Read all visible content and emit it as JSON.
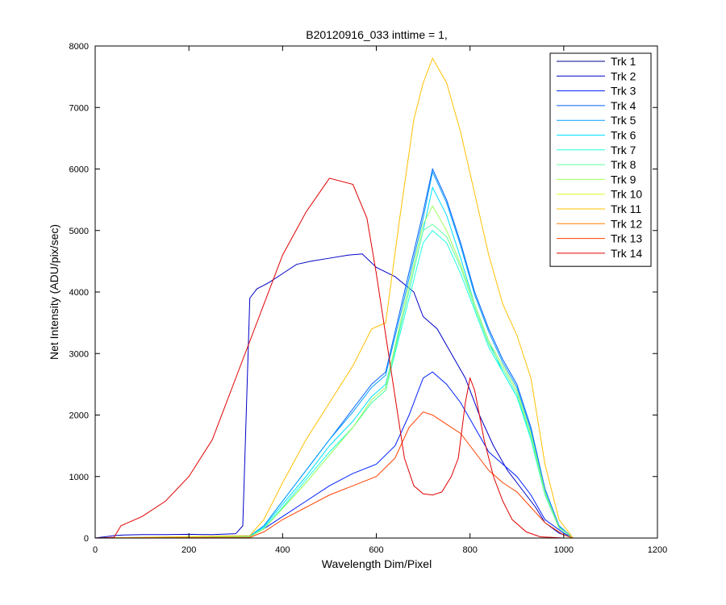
{
  "chart_data": {
    "type": "line",
    "title": "B20120916_033 inttime = 1,",
    "xlabel": "Wavelength Dim/Pixel",
    "ylabel": "Net Intensity (ADU/pix/sec)",
    "xlim": [
      0,
      1200
    ],
    "ylim": [
      0,
      8000
    ],
    "xticks": [
      0,
      200,
      400,
      600,
      800,
      1000,
      1200
    ],
    "yticks": [
      0,
      1000,
      2000,
      3000,
      4000,
      5000,
      6000,
      7000,
      8000
    ],
    "grid": false,
    "legend_position": "top-right",
    "series": [
      {
        "name": "Trk 1",
        "color": "#00008f",
        "points": [
          [
            0,
            0
          ],
          [
            100,
            0
          ],
          [
            200,
            0
          ],
          [
            300,
            0
          ],
          [
            400,
            0
          ],
          [
            500,
            0
          ],
          [
            600,
            0
          ],
          [
            700,
            0
          ],
          [
            800,
            0
          ],
          [
            900,
            0
          ],
          [
            1000,
            0
          ],
          [
            1024,
            0
          ]
        ]
      },
      {
        "name": "Trk 2",
        "color": "#0000c8",
        "points": [
          [
            0,
            0
          ],
          [
            40,
            40
          ],
          [
            60,
            50
          ],
          [
            100,
            55
          ],
          [
            150,
            55
          ],
          [
            200,
            60
          ],
          [
            250,
            55
          ],
          [
            300,
            70
          ],
          [
            315,
            200
          ],
          [
            330,
            3900
          ],
          [
            345,
            4050
          ],
          [
            370,
            4150
          ],
          [
            400,
            4300
          ],
          [
            430,
            4450
          ],
          [
            460,
            4500
          ],
          [
            500,
            4550
          ],
          [
            540,
            4600
          ],
          [
            570,
            4620
          ],
          [
            600,
            4400
          ],
          [
            640,
            4250
          ],
          [
            680,
            4000
          ],
          [
            700,
            3600
          ],
          [
            730,
            3400
          ],
          [
            760,
            3000
          ],
          [
            790,
            2600
          ],
          [
            820,
            2000
          ],
          [
            850,
            1500
          ],
          [
            880,
            1100
          ],
          [
            910,
            800
          ],
          [
            940,
            500
          ],
          [
            960,
            250
          ],
          [
            990,
            80
          ],
          [
            1020,
            0
          ]
        ]
      },
      {
        "name": "Trk 3",
        "color": "#0020ff",
        "points": [
          [
            0,
            0
          ],
          [
            330,
            20
          ],
          [
            360,
            150
          ],
          [
            400,
            350
          ],
          [
            450,
            600
          ],
          [
            500,
            850
          ],
          [
            550,
            1050
          ],
          [
            600,
            1200
          ],
          [
            640,
            1500
          ],
          [
            670,
            2000
          ],
          [
            700,
            2600
          ],
          [
            720,
            2700
          ],
          [
            750,
            2500
          ],
          [
            780,
            2200
          ],
          [
            810,
            1800
          ],
          [
            840,
            1400
          ],
          [
            870,
            1200
          ],
          [
            900,
            1000
          ],
          [
            930,
            700
          ],
          [
            960,
            300
          ],
          [
            1000,
            80
          ],
          [
            1020,
            0
          ]
        ]
      },
      {
        "name": "Trk 4",
        "color": "#0060ff",
        "points": [
          [
            0,
            0
          ],
          [
            330,
            30
          ],
          [
            360,
            200
          ],
          [
            400,
            600
          ],
          [
            450,
            1100
          ],
          [
            500,
            1600
          ],
          [
            550,
            2100
          ],
          [
            590,
            2500
          ],
          [
            620,
            2700
          ],
          [
            660,
            4000
          ],
          [
            700,
            5300
          ],
          [
            720,
            6000
          ],
          [
            750,
            5500
          ],
          [
            780,
            4800
          ],
          [
            810,
            4000
          ],
          [
            840,
            3400
          ],
          [
            870,
            2900
          ],
          [
            900,
            2500
          ],
          [
            930,
            1800
          ],
          [
            960,
            800
          ],
          [
            990,
            200
          ],
          [
            1020,
            0
          ]
        ]
      },
      {
        "name": "Trk 5",
        "color": "#00a0ff",
        "points": [
          [
            0,
            0
          ],
          [
            330,
            30
          ],
          [
            360,
            200
          ],
          [
            400,
            600
          ],
          [
            450,
            1100
          ],
          [
            500,
            1600
          ],
          [
            550,
            2050
          ],
          [
            590,
            2450
          ],
          [
            620,
            2650
          ],
          [
            660,
            3900
          ],
          [
            700,
            5200
          ],
          [
            720,
            5950
          ],
          [
            750,
            5450
          ],
          [
            780,
            4750
          ],
          [
            810,
            3950
          ],
          [
            840,
            3350
          ],
          [
            870,
            2850
          ],
          [
            900,
            2450
          ],
          [
            930,
            1750
          ],
          [
            960,
            780
          ],
          [
            990,
            190
          ],
          [
            1020,
            0
          ]
        ]
      },
      {
        "name": "Trk 6",
        "color": "#00e0ff",
        "points": [
          [
            0,
            0
          ],
          [
            330,
            25
          ],
          [
            360,
            180
          ],
          [
            400,
            550
          ],
          [
            450,
            1000
          ],
          [
            500,
            1500
          ],
          [
            550,
            1900
          ],
          [
            590,
            2300
          ],
          [
            620,
            2500
          ],
          [
            660,
            3700
          ],
          [
            700,
            5000
          ],
          [
            720,
            5700
          ],
          [
            750,
            5250
          ],
          [
            780,
            4550
          ],
          [
            810,
            3800
          ],
          [
            840,
            3200
          ],
          [
            870,
            2700
          ],
          [
            900,
            2300
          ],
          [
            930,
            1650
          ],
          [
            960,
            720
          ],
          [
            990,
            170
          ],
          [
            1020,
            0
          ]
        ]
      },
      {
        "name": "Trk 7",
        "color": "#20ffe0",
        "points": [
          [
            0,
            0
          ],
          [
            330,
            20
          ],
          [
            360,
            160
          ],
          [
            400,
            500
          ],
          [
            450,
            950
          ],
          [
            500,
            1400
          ],
          [
            550,
            1800
          ],
          [
            590,
            2200
          ],
          [
            620,
            2400
          ],
          [
            660,
            3600
          ],
          [
            700,
            4800
          ],
          [
            720,
            5000
          ],
          [
            750,
            4800
          ],
          [
            780,
            4300
          ],
          [
            810,
            3700
          ],
          [
            840,
            3100
          ],
          [
            870,
            2700
          ],
          [
            900,
            2300
          ],
          [
            930,
            1600
          ],
          [
            960,
            700
          ],
          [
            990,
            160
          ],
          [
            1020,
            0
          ]
        ]
      },
      {
        "name": "Trk 8",
        "color": "#60ff9f",
        "points": [
          [
            0,
            0
          ],
          [
            330,
            20
          ],
          [
            360,
            150
          ],
          [
            400,
            480
          ],
          [
            450,
            900
          ],
          [
            500,
            1350
          ],
          [
            550,
            1800
          ],
          [
            590,
            2200
          ],
          [
            620,
            2400
          ],
          [
            660,
            3700
          ],
          [
            700,
            5000
          ],
          [
            720,
            5100
          ],
          [
            750,
            4900
          ],
          [
            780,
            4400
          ],
          [
            810,
            3750
          ],
          [
            840,
            3150
          ],
          [
            870,
            2750
          ],
          [
            900,
            2350
          ],
          [
            930,
            1650
          ],
          [
            960,
            720
          ],
          [
            990,
            170
          ],
          [
            1020,
            0
          ]
        ]
      },
      {
        "name": "Trk 9",
        "color": "#a0ff60",
        "points": [
          [
            0,
            0
          ],
          [
            330,
            20
          ],
          [
            360,
            150
          ],
          [
            400,
            480
          ],
          [
            450,
            900
          ],
          [
            500,
            1350
          ],
          [
            550,
            1800
          ],
          [
            590,
            2250
          ],
          [
            620,
            2450
          ],
          [
            660,
            3800
          ],
          [
            700,
            5100
          ],
          [
            720,
            5400
          ],
          [
            750,
            5000
          ],
          [
            780,
            4450
          ],
          [
            810,
            3800
          ],
          [
            840,
            3200
          ],
          [
            870,
            2800
          ],
          [
            900,
            2400
          ],
          [
            930,
            1700
          ],
          [
            960,
            740
          ],
          [
            990,
            170
          ],
          [
            1020,
            0
          ]
        ]
      },
      {
        "name": "Trk 10",
        "color": "#e0ff20",
        "points": [
          [
            0,
            0
          ],
          [
            100,
            0
          ],
          [
            200,
            0
          ],
          [
            300,
            0
          ],
          [
            400,
            0
          ],
          [
            500,
            0
          ],
          [
            600,
            0
          ],
          [
            700,
            0
          ],
          [
            800,
            0
          ],
          [
            900,
            0
          ],
          [
            1000,
            0
          ],
          [
            1024,
            0
          ]
        ]
      },
      {
        "name": "Trk 11",
        "color": "#ffc000",
        "points": [
          [
            0,
            0
          ],
          [
            330,
            40
          ],
          [
            360,
            300
          ],
          [
            400,
            900
          ],
          [
            450,
            1600
          ],
          [
            500,
            2200
          ],
          [
            550,
            2800
          ],
          [
            590,
            3400
          ],
          [
            620,
            3500
          ],
          [
            650,
            5200
          ],
          [
            680,
            6800
          ],
          [
            700,
            7400
          ],
          [
            720,
            7800
          ],
          [
            750,
            7400
          ],
          [
            780,
            6600
          ],
          [
            810,
            5600
          ],
          [
            840,
            4600
          ],
          [
            870,
            3800
          ],
          [
            900,
            3300
          ],
          [
            930,
            2600
          ],
          [
            960,
            1200
          ],
          [
            990,
            300
          ],
          [
            1020,
            0
          ]
        ]
      },
      {
        "name": "Trk 12",
        "color": "#ff8000",
        "points": [
          [
            0,
            0
          ],
          [
            100,
            0
          ],
          [
            200,
            0
          ],
          [
            300,
            0
          ],
          [
            400,
            0
          ],
          [
            500,
            0
          ],
          [
            600,
            0
          ],
          [
            700,
            0
          ],
          [
            800,
            0
          ],
          [
            900,
            0
          ],
          [
            1000,
            0
          ],
          [
            1024,
            0
          ]
        ]
      },
      {
        "name": "Trk 13",
        "color": "#ff4000",
        "points": [
          [
            0,
            0
          ],
          [
            330,
            10
          ],
          [
            360,
            100
          ],
          [
            400,
            300
          ],
          [
            450,
            500
          ],
          [
            500,
            700
          ],
          [
            550,
            850
          ],
          [
            600,
            1000
          ],
          [
            640,
            1300
          ],
          [
            670,
            1800
          ],
          [
            700,
            2050
          ],
          [
            720,
            2000
          ],
          [
            750,
            1850
          ],
          [
            780,
            1700
          ],
          [
            810,
            1400
          ],
          [
            840,
            1100
          ],
          [
            870,
            900
          ],
          [
            900,
            750
          ],
          [
            930,
            500
          ],
          [
            960,
            250
          ],
          [
            1000,
            50
          ],
          [
            1020,
            0
          ]
        ]
      },
      {
        "name": "Trk 14",
        "color": "#e00000",
        "points": [
          [
            0,
            0
          ],
          [
            40,
            10
          ],
          [
            55,
            200
          ],
          [
            70,
            250
          ],
          [
            100,
            350
          ],
          [
            150,
            600
          ],
          [
            200,
            1000
          ],
          [
            250,
            1600
          ],
          [
            300,
            2600
          ],
          [
            350,
            3600
          ],
          [
            400,
            4600
          ],
          [
            450,
            5300
          ],
          [
            500,
            5850
          ],
          [
            550,
            5750
          ],
          [
            580,
            5200
          ],
          [
            600,
            4300
          ],
          [
            620,
            3300
          ],
          [
            640,
            2300
          ],
          [
            660,
            1300
          ],
          [
            680,
            850
          ],
          [
            700,
            720
          ],
          [
            720,
            700
          ],
          [
            740,
            750
          ],
          [
            760,
            1000
          ],
          [
            775,
            1300
          ],
          [
            790,
            2200
          ],
          [
            800,
            2600
          ],
          [
            810,
            2400
          ],
          [
            830,
            1600
          ],
          [
            850,
            1000
          ],
          [
            870,
            600
          ],
          [
            890,
            300
          ],
          [
            920,
            100
          ],
          [
            950,
            20
          ],
          [
            1000,
            0
          ],
          [
            1024,
            0
          ]
        ]
      }
    ]
  }
}
